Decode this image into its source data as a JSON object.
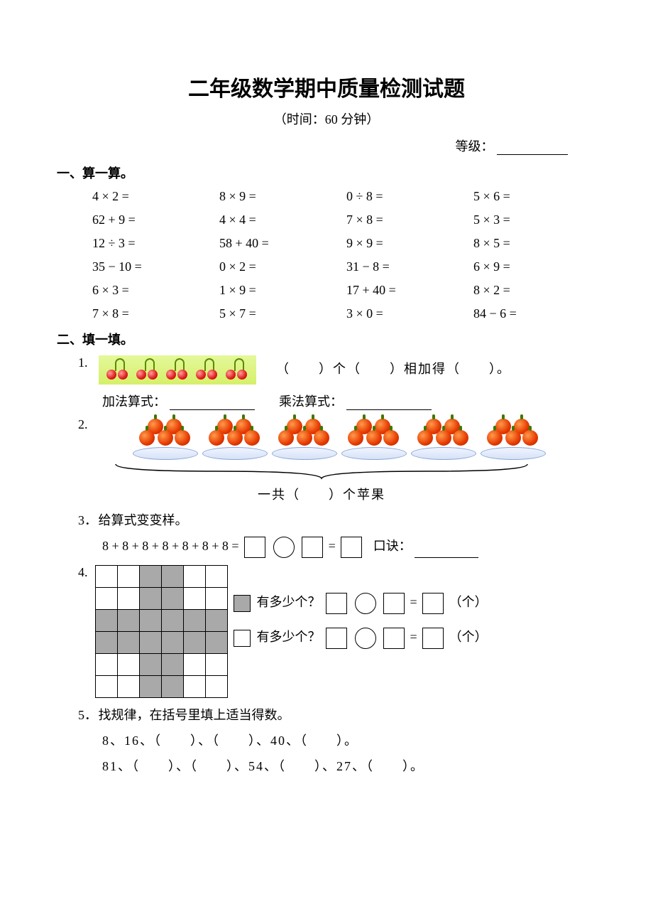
{
  "title": "二年级数学期中质量检测试题",
  "subtitle": "（时间：60 分钟）",
  "grade_label": "等级：",
  "s1": {
    "heading": "一、算一算。",
    "items": [
      "4 × 2 =",
      "8 × 9 =",
      "0 ÷ 8 =",
      "5 × 6 =",
      "62 + 9 =",
      "4 × 4 =",
      "7 × 8 =",
      "5 × 3 =",
      "12 ÷ 3 =",
      "58 + 40 =",
      "9 × 9 =",
      "8 × 5   =",
      "35 − 10 =",
      "0 × 2 =",
      "31 − 8 =",
      "6 × 9 =",
      "6 × 3 =",
      "1 × 9 =",
      "17 + 40 =",
      "8 × 2 =",
      "7 × 8 =",
      "5 × 7 =",
      "3 × 0 =",
      "84 − 6 ="
    ]
  },
  "s2": {
    "heading": "二、填一填。",
    "q1": {
      "num": "1.",
      "text_after": "（　　）个（　　）相加得（　　）。",
      "add_label": "加法算式：",
      "mul_label": "乘法算式：",
      "cherry_pairs": 5
    },
    "q2": {
      "num": "2.",
      "plates": 6,
      "total_text": "一共（　　）个苹果"
    },
    "q3": {
      "num": "3．",
      "title": "给算式变变样。",
      "expr": "8 + 8 + 8 + 8 + 8 + 8 + 8  =",
      "koujue": "口诀："
    },
    "q4": {
      "num": "4.",
      "ask": "有多少个？",
      "unit": "（个）",
      "grid_dark": [
        [
          0,
          0,
          1,
          1,
          0,
          0
        ],
        [
          0,
          0,
          1,
          1,
          0,
          0
        ],
        [
          1,
          1,
          1,
          1,
          1,
          1
        ],
        [
          1,
          1,
          1,
          1,
          1,
          1
        ],
        [
          0,
          0,
          1,
          1,
          0,
          0
        ],
        [
          0,
          0,
          1,
          1,
          0,
          0
        ]
      ]
    },
    "q5": {
      "num": "5．",
      "title": "找规律，在括号里填上适当得数。",
      "line1": "8、16、（　　）、（　　）、40、（　　）。",
      "line2": "81、（　　）、（　　）、54、（　　）、27、（　　）。"
    }
  },
  "colors": {
    "text": "#000000",
    "bg": "#ffffff",
    "grid_dark": "#a9a9a9"
  }
}
